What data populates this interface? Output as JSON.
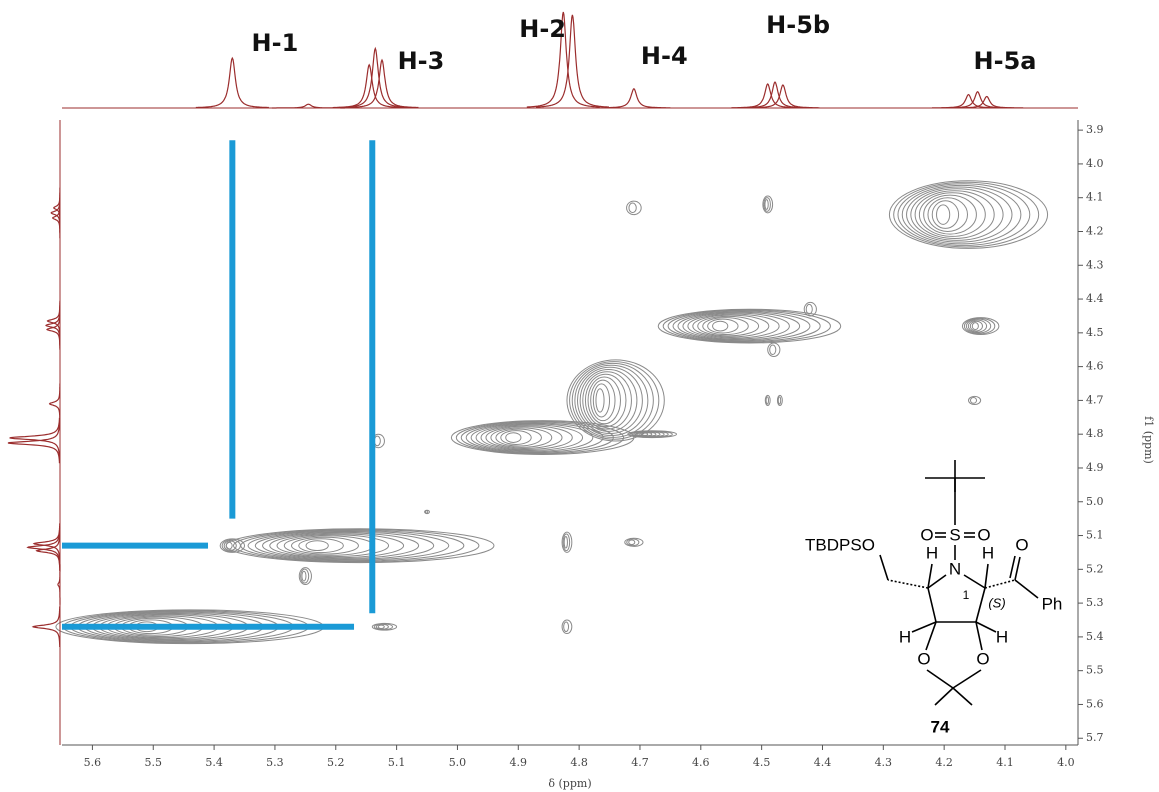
{
  "chart_data": {
    "type": "nmr2d",
    "xlabel": "δ (ppm)",
    "ylabel": "f1 (ppm)",
    "xlim": [
      5.65,
      3.98
    ],
    "ylim": [
      3.87,
      5.72
    ],
    "xticks": [
      5.6,
      5.5,
      5.4,
      5.3,
      5.2,
      5.1,
      {
        "value": 5.0,
        "label": "5.0"
      },
      4.9,
      4.8,
      4.7,
      4.6,
      4.5,
      4.4,
      4.3,
      4.2,
      4.1,
      {
        "value": 4.0,
        "label": "4.0"
      }
    ],
    "yticks": [
      3.9,
      {
        "value": 4.0,
        "label": "4.0"
      },
      4.1,
      4.2,
      4.3,
      4.4,
      4.5,
      4.6,
      4.7,
      4.8,
      4.9,
      {
        "value": 5.0,
        "label": "5.0"
      },
      5.1,
      5.2,
      5.3,
      5.4,
      5.5,
      5.6,
      5.7
    ],
    "trace_color": "#9b2d2d",
    "contour_color": "#8a8a8a",
    "guide_color": "#1a9ad6",
    "peaks": {
      "x": [
        5.37,
        5.145,
        5.135,
        5.124,
        5.245,
        4.826,
        4.811,
        4.71,
        4.49,
        4.478,
        4.465,
        4.16,
        4.145,
        4.13
      ],
      "height": [
        0.52,
        0.45,
        0.62,
        0.5,
        0.04,
        1.0,
        0.97,
        0.2,
        0.25,
        0.27,
        0.24,
        0.14,
        0.17,
        0.12
      ]
    },
    "peak_labels": [
      {
        "text": "H-1",
        "x": 5.3
      },
      {
        "text": "H-3",
        "x": 5.06
      },
      {
        "text": "H-2",
        "x": 4.86
      },
      {
        "text": "H-4",
        "x": 4.66
      },
      {
        "text": "H-5b",
        "x": 4.44
      },
      {
        "text": "H-5a",
        "x": 4.1
      }
    ],
    "cross_peaks": {
      "x": [
        4.16,
        4.71,
        4.49,
        4.52,
        4.14,
        4.42,
        4.48,
        4.49,
        4.47,
        4.15,
        4.74,
        4.86,
        4.68,
        5.13,
        4.82,
        4.71,
        5.05,
        5.16,
        5.37,
        5.25,
        4.82,
        5.12,
        5.44
      ],
      "y": [
        4.15,
        4.13,
        4.12,
        4.48,
        4.48,
        4.43,
        4.55,
        4.7,
        4.7,
        4.7,
        4.7,
        4.81,
        4.8,
        4.82,
        5.12,
        5.12,
        5.03,
        5.13,
        5.13,
        5.22,
        5.37,
        5.37,
        5.37
      ],
      "wx": [
        0.13,
        0.012,
        0.008,
        0.15,
        0.03,
        0.01,
        0.01,
        0.004,
        0.004,
        0.01,
        0.08,
        0.15,
        0.04,
        0.01,
        0.008,
        0.015,
        0.004,
        0.22,
        0.02,
        0.01,
        0.008,
        0.02,
        0.22
      ],
      "wy": [
        0.1,
        0.02,
        0.025,
        0.05,
        0.025,
        0.02,
        0.02,
        0.015,
        0.015,
        0.012,
        0.12,
        0.05,
        0.01,
        0.02,
        0.03,
        0.012,
        0.005,
        0.05,
        0.02,
        0.025,
        0.02,
        0.01,
        0.05
      ]
    },
    "guides": {
      "x1": [
        5.37,
        5.14,
        5.65,
        5.65
      ],
      "y1": [
        3.93,
        3.93,
        5.13,
        5.37
      ],
      "x2": [
        5.37,
        5.14,
        5.41,
        5.17
      ],
      "y2": [
        5.05,
        5.33,
        5.13,
        5.37
      ]
    }
  },
  "structure": {
    "labels": [
      "TBDPSO",
      "O",
      "S",
      "O",
      "N",
      "H",
      "H",
      "O",
      "Ph",
      "(S)",
      "1",
      "H",
      "H",
      "O",
      "O"
    ],
    "compound": "74"
  }
}
